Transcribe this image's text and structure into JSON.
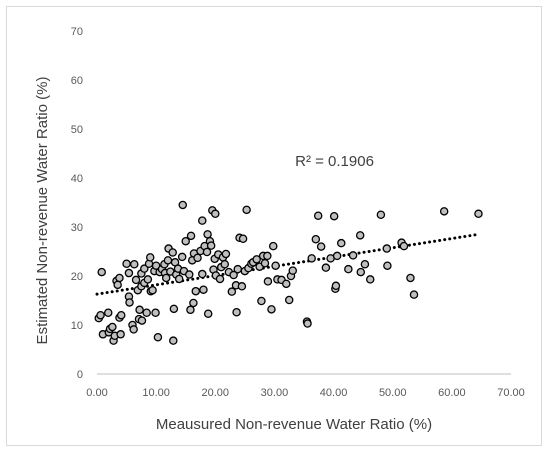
{
  "chart_data": {
    "type": "scatter",
    "xlabel": "Meausured Non-revenue Water Ratio (%)",
    "ylabel": "Estimated Non-revenue Water Ratio (%)",
    "annotation": "R² = 0.1906",
    "xlim": [
      0,
      70
    ],
    "ylim": [
      0,
      70
    ],
    "x_ticks": [
      "0.00",
      "10.00",
      "20.00",
      "30.00",
      "40.00",
      "50.00",
      "60.00",
      "70.00"
    ],
    "y_ticks": [
      "0",
      "10",
      "20",
      "30",
      "40",
      "50",
      "60",
      "70"
    ],
    "grid": false,
    "marker_fill": "#bfbfbf",
    "marker_edge": "#000000",
    "trendline": {
      "type": "linear",
      "style": "dotted",
      "color": "#000000",
      "x": [
        0,
        64.5
      ],
      "y": [
        16.3,
        28.5
      ]
    },
    "points": [
      [
        0.3,
        11.4
      ],
      [
        0.6,
        12
      ],
      [
        0.8,
        20.8
      ],
      [
        1,
        8.1
      ],
      [
        1.9,
        12.5
      ],
      [
        2,
        8.5
      ],
      [
        2.2,
        9.2
      ],
      [
        2.6,
        9.6
      ],
      [
        2.8,
        6.8
      ],
      [
        3,
        7.8
      ],
      [
        3.3,
        19
      ],
      [
        3.5,
        18.2
      ],
      [
        3.8,
        11.5
      ],
      [
        3.8,
        19.6
      ],
      [
        4,
        8.1
      ],
      [
        4.1,
        12
      ],
      [
        5,
        22.5
      ],
      [
        5.4,
        15.8
      ],
      [
        5.4,
        20.6
      ],
      [
        5.5,
        14.6
      ],
      [
        6,
        10
      ],
      [
        6.2,
        9.1
      ],
      [
        6.3,
        22.4
      ],
      [
        6.6,
        19.2
      ],
      [
        6.9,
        17.1
      ],
      [
        7.1,
        11.2
      ],
      [
        7.2,
        13.1
      ],
      [
        7.5,
        17.9
      ],
      [
        7.5,
        20.5
      ],
      [
        7.6,
        10.9
      ],
      [
        8,
        18.6
      ],
      [
        8,
        21.5
      ],
      [
        8.4,
        12.5
      ],
      [
        8.6,
        19.3
      ],
      [
        8.8,
        22.5
      ],
      [
        9,
        23.8
      ],
      [
        9.1,
        16.9
      ],
      [
        9.4,
        17.1
      ],
      [
        9.7,
        21
      ],
      [
        9.9,
        12.5
      ],
      [
        10,
        22.1
      ],
      [
        10.3,
        7.5
      ],
      [
        10.6,
        20.8
      ],
      [
        11,
        21.4
      ],
      [
        11.4,
        22.4
      ],
      [
        11.5,
        20.6
      ],
      [
        11.7,
        19.6
      ],
      [
        12,
        23.2
      ],
      [
        12.1,
        25.6
      ],
      [
        12.4,
        20.9
      ],
      [
        12.8,
        24.8
      ],
      [
        12.9,
        6.8
      ],
      [
        13,
        13.3
      ],
      [
        13.2,
        22.8
      ],
      [
        13.4,
        20.3
      ],
      [
        13.7,
        21.5
      ],
      [
        13.9,
        19.4
      ],
      [
        14.4,
        23.9
      ],
      [
        14.5,
        34.5
      ],
      [
        14.7,
        21
      ],
      [
        15,
        27.1
      ],
      [
        15.6,
        20.3
      ],
      [
        15.8,
        13.1
      ],
      [
        15.9,
        28.2
      ],
      [
        16.1,
        23.2
      ],
      [
        16.3,
        14.5
      ],
      [
        16.4,
        24.6
      ],
      [
        16.7,
        16.9
      ],
      [
        17,
        23.7
      ],
      [
        17.5,
        25.1
      ],
      [
        17.8,
        20.4
      ],
      [
        17.8,
        31.3
      ],
      [
        18,
        17.2
      ],
      [
        18.2,
        26.1
      ],
      [
        18.6,
        24.9
      ],
      [
        18.7,
        28.5
      ],
      [
        18.8,
        12.3
      ],
      [
        19.1,
        27.1
      ],
      [
        19.3,
        26.2
      ],
      [
        19.5,
        33.4
      ],
      [
        19.7,
        21.3
      ],
      [
        19.9,
        23.5
      ],
      [
        20,
        32.7
      ],
      [
        20.1,
        20.1
      ],
      [
        20.5,
        24.4
      ],
      [
        20.8,
        19.4
      ],
      [
        21,
        21.8
      ],
      [
        21.3,
        23.8
      ],
      [
        21.6,
        22.4
      ],
      [
        21.8,
        24.5
      ],
      [
        22.3,
        20.8
      ],
      [
        22.8,
        16.8
      ],
      [
        23.1,
        20.2
      ],
      [
        23.5,
        18.1
      ],
      [
        23.6,
        12.6
      ],
      [
        23.8,
        21.4
      ],
      [
        24.1,
        27.8
      ],
      [
        24.5,
        17.9
      ],
      [
        24.7,
        27.6
      ],
      [
        25,
        21
      ],
      [
        25.3,
        33.5
      ],
      [
        25.6,
        21.6
      ],
      [
        26.1,
        22.5
      ],
      [
        26.4,
        22.8
      ],
      [
        27,
        23.4
      ],
      [
        27.5,
        21.9
      ],
      [
        27.8,
        14.9
      ],
      [
        28.1,
        24.1
      ],
      [
        28.4,
        22.6
      ],
      [
        28.8,
        24.1
      ],
      [
        28.9,
        18.9
      ],
      [
        29.5,
        13.2
      ],
      [
        29.8,
        26.1
      ],
      [
        30.2,
        22.1
      ],
      [
        30.5,
        19.3
      ],
      [
        31.2,
        19.2
      ],
      [
        32,
        18.4
      ],
      [
        32.5,
        15.1
      ],
      [
        32.8,
        20
      ],
      [
        33.1,
        21.1
      ],
      [
        35.5,
        10.7
      ],
      [
        35.6,
        10.3
      ],
      [
        36.3,
        23.6
      ],
      [
        37,
        27.5
      ],
      [
        37.4,
        32.3
      ],
      [
        37.9,
        26
      ],
      [
        38.7,
        21.7
      ],
      [
        39.5,
        23.6
      ],
      [
        40.1,
        32.2
      ],
      [
        40.3,
        17.4
      ],
      [
        40.4,
        18
      ],
      [
        40.6,
        24.1
      ],
      [
        41.3,
        26.7
      ],
      [
        42.5,
        21.4
      ],
      [
        43.3,
        24.2
      ],
      [
        44.5,
        28.3
      ],
      [
        44.6,
        20.8
      ],
      [
        45.3,
        22.4
      ],
      [
        46.2,
        19.3
      ],
      [
        48,
        32.5
      ],
      [
        49,
        25.6
      ],
      [
        49.1,
        22.1
      ],
      [
        51.5,
        26.8
      ],
      [
        51.9,
        26.1
      ],
      [
        53,
        19.6
      ],
      [
        53.6,
        16.2
      ],
      [
        58.7,
        33.2
      ],
      [
        64.5,
        32.7
      ]
    ]
  }
}
